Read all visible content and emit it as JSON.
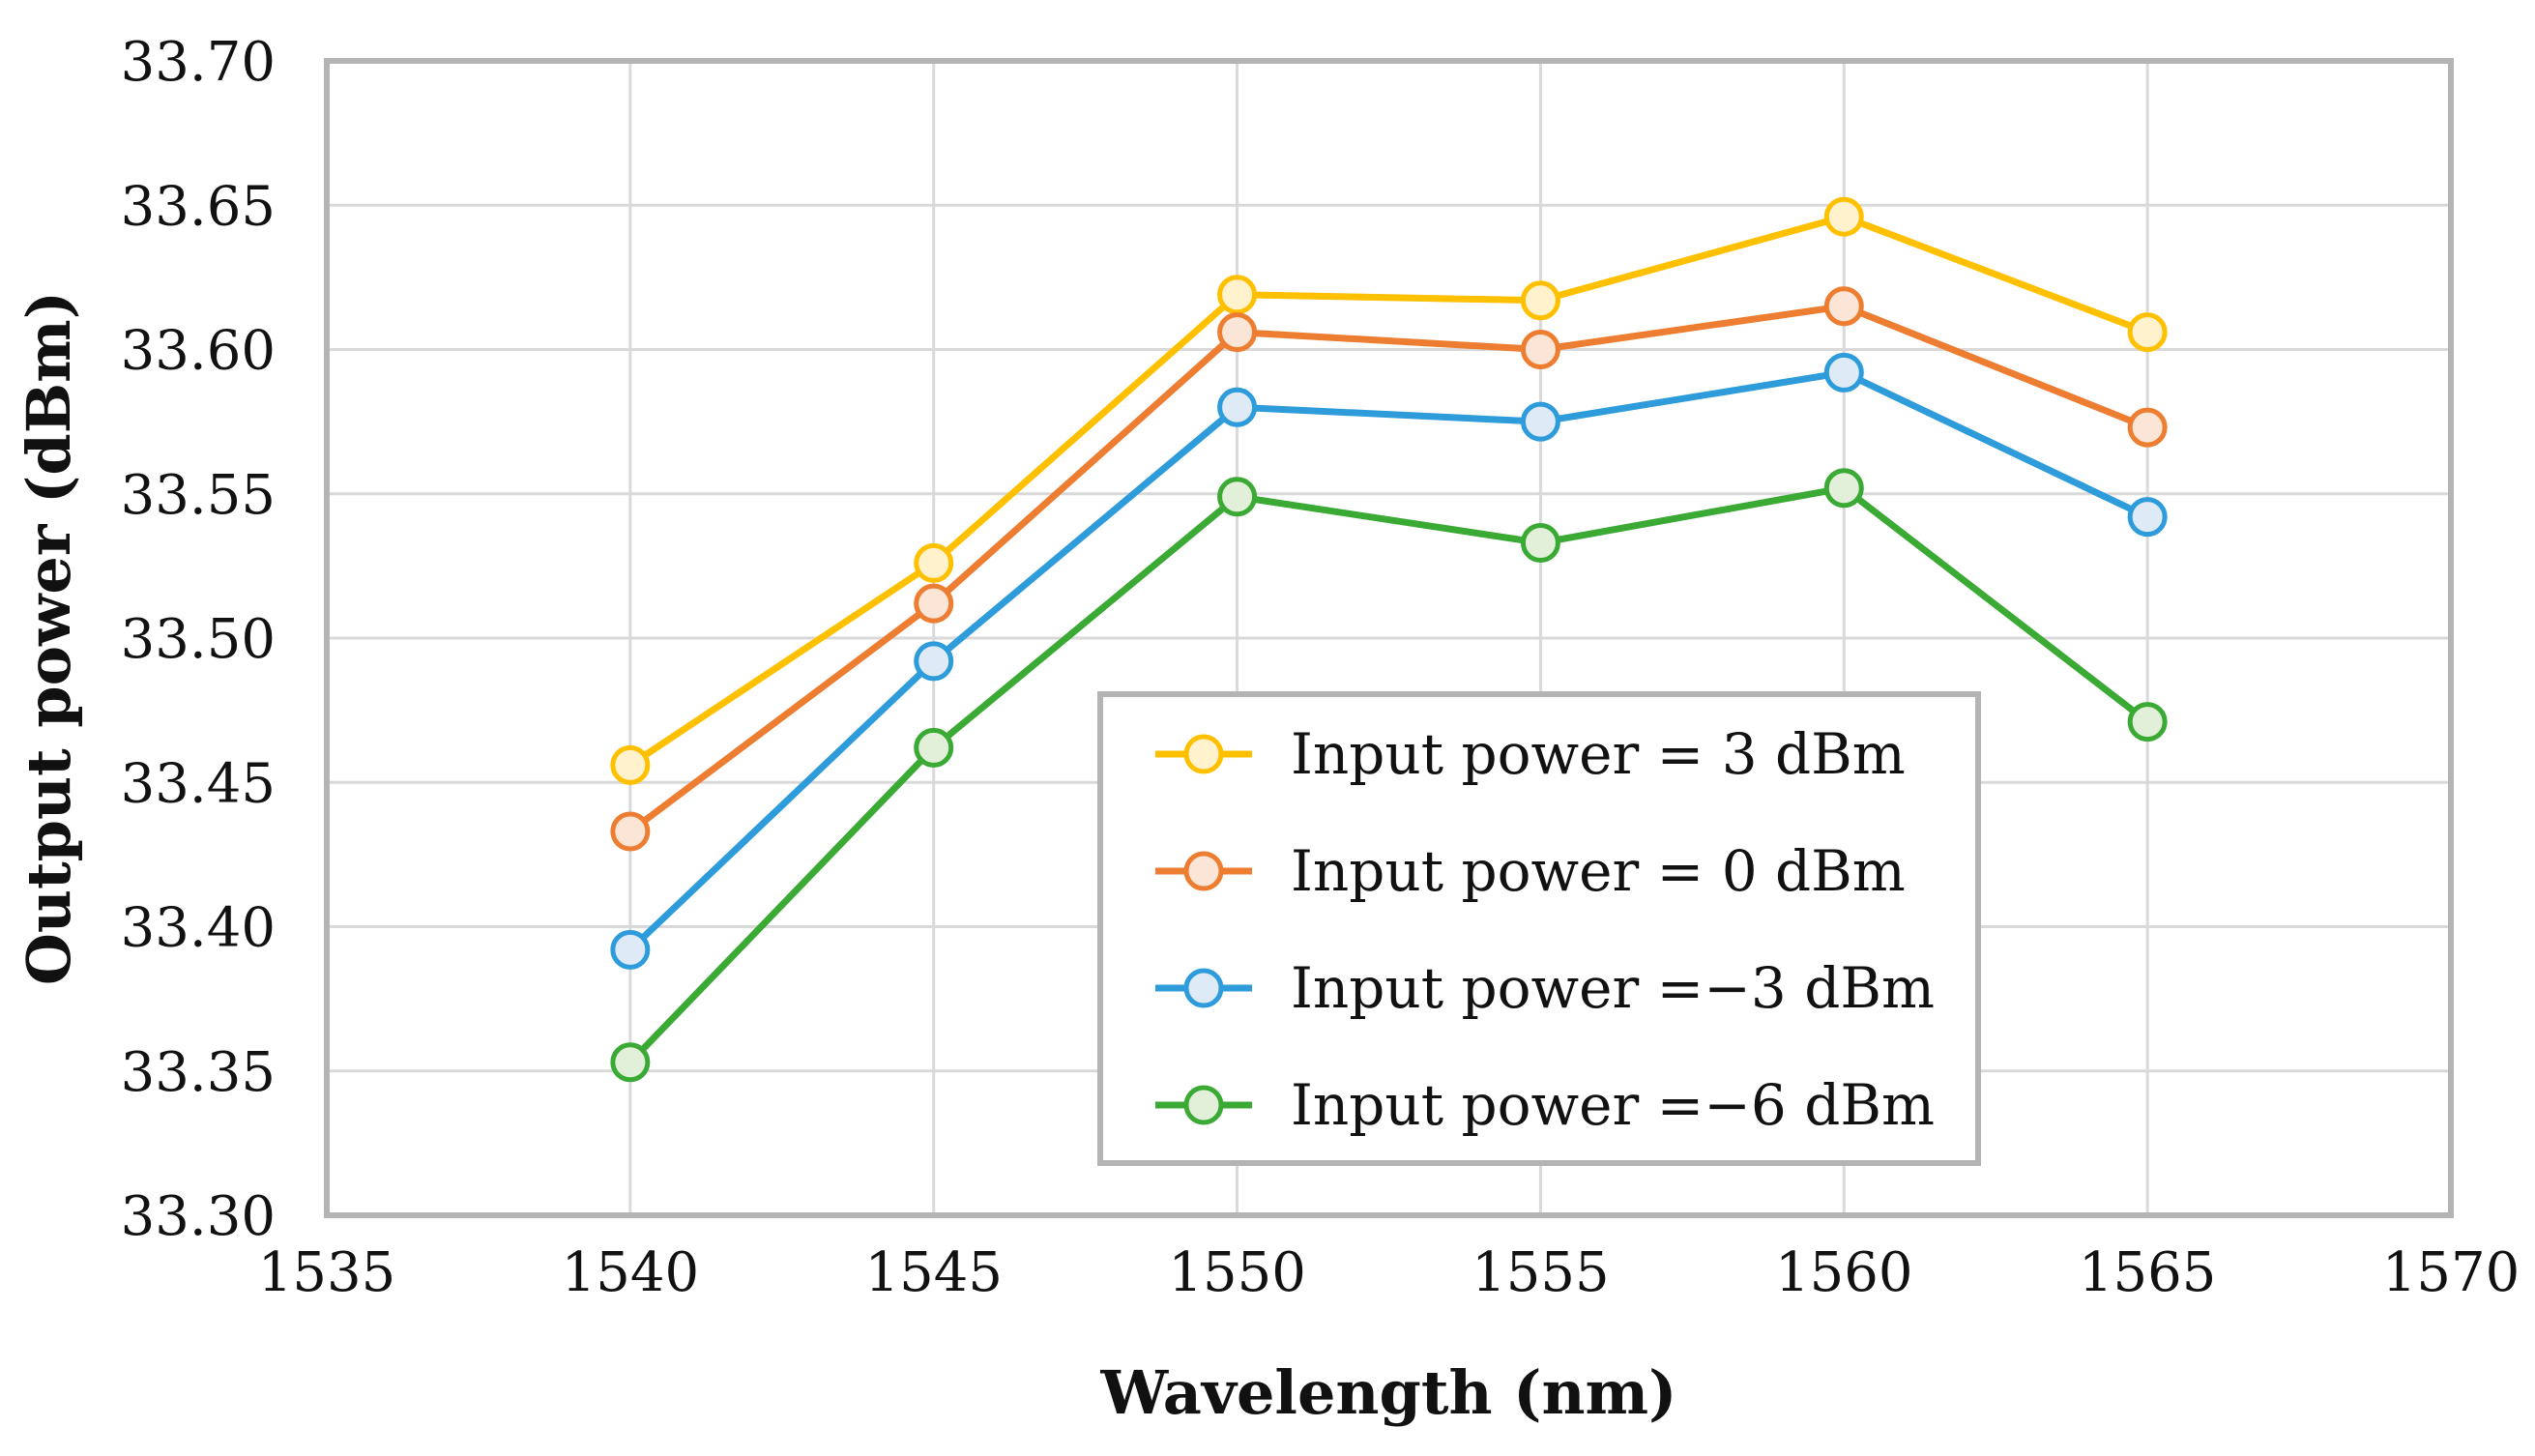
{
  "chart_data": {
    "type": "line",
    "title": "",
    "xlabel": "Wavelength (nm)",
    "ylabel": "Output power (dBm)",
    "xlim": [
      1535,
      1570
    ],
    "ylim": [
      33.3,
      33.7
    ],
    "xticks": [
      "1535",
      "1540",
      "1545",
      "1550",
      "1555",
      "1560",
      "1565",
      "1570"
    ],
    "yticks": [
      "33.30",
      "33.35",
      "33.40",
      "33.45",
      "33.50",
      "33.55",
      "33.60",
      "33.65",
      "33.70"
    ],
    "grid": true,
    "legend_position": "bottom-center",
    "x": [
      1540,
      1545,
      1550,
      1555,
      1560,
      1565
    ],
    "series": [
      {
        "name": "Input power = 3 dBm",
        "color": "#FFC000",
        "fill": "#FFF2CC",
        "values": [
          33.456,
          33.526,
          33.619,
          33.617,
          33.646,
          33.606
        ]
      },
      {
        "name": "Input power = 0 dBm",
        "color": "#ED7D31",
        "fill": "#FBE5D6",
        "values": [
          33.433,
          33.512,
          33.606,
          33.6,
          33.615,
          33.573
        ]
      },
      {
        "name": "Input power =−3 dBm",
        "color": "#2E9BDA",
        "fill": "#DEEBF7",
        "values": [
          33.392,
          33.492,
          33.58,
          33.575,
          33.592,
          33.542
        ]
      },
      {
        "name": "Input power =−6 dBm",
        "color": "#3AAA35",
        "fill": "#E2F0D9",
        "values": [
          33.353,
          33.462,
          33.549,
          33.533,
          33.552,
          33.471
        ]
      }
    ]
  }
}
